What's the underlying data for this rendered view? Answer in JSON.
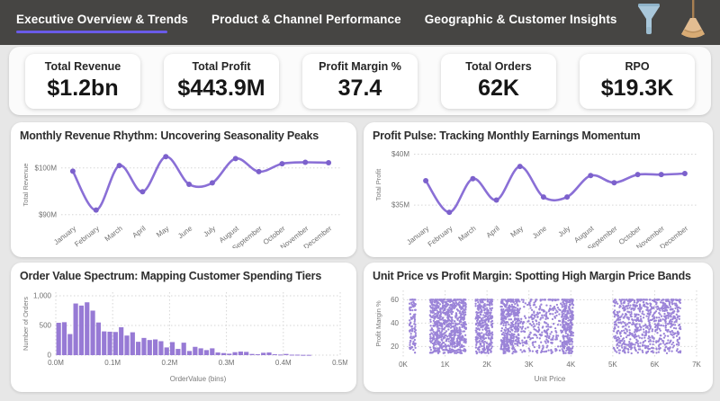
{
  "topbar": {
    "tabs": [
      {
        "label": "Executive Overview & Trends",
        "active": true
      },
      {
        "label": "Product & Channel Performance",
        "active": false
      },
      {
        "label": "Geographic & Customer Insights",
        "active": false
      }
    ]
  },
  "kpis": [
    {
      "label": "Total Revenue",
      "value": "$1.2bn"
    },
    {
      "label": "Total Profit",
      "value": "$443.9M"
    },
    {
      "label": "Profit Margin %",
      "value": "37.4"
    },
    {
      "label": "Total Orders",
      "value": "62K"
    },
    {
      "label": "RPO",
      "value": "$19.3K"
    }
  ],
  "colors": {
    "topbar_bg": "#464543",
    "tab_underline": "#6a5be8",
    "line_purple": "#8a6fd6",
    "marker_purple": "#7c61cc",
    "bar_purple": "#977ad5",
    "scatter_purple": "#8e73d3",
    "grid": "#d6d6d6",
    "tick_text": "#6f6f6f",
    "axis_title_text": "#7a7a7a"
  },
  "chart_data": [
    {
      "type": "line",
      "title": "Monthly Revenue Rhythm: Uncovering Seasonality Peaks",
      "ylabel": "Total Revenue",
      "unit": "$M",
      "categories": [
        "January",
        "February",
        "March",
        "April",
        "May",
        "June",
        "July",
        "August",
        "September",
        "October",
        "November",
        "December"
      ],
      "values": [
        99.3,
        91.0,
        100.5,
        94.9,
        102.4,
        96.5,
        96.8,
        102.0,
        99.2,
        100.9,
        101.2,
        101.1
      ],
      "ylim": [
        89.0,
        103.8
      ],
      "yticks": [
        {
          "v": 90,
          "label": "$90M"
        },
        {
          "v": 100,
          "label": "$100M"
        }
      ],
      "grid": "horizontal-dotted",
      "legend": "none"
    },
    {
      "type": "line",
      "title": "Profit Pulse: Tracking Monthly Earnings Momentum",
      "ylabel": "Total Profit",
      "unit": "$M",
      "categories": [
        "January",
        "February",
        "March",
        "April",
        "May",
        "June",
        "July",
        "August",
        "September",
        "October",
        "November",
        "December"
      ],
      "values": [
        37.4,
        34.3,
        37.6,
        35.5,
        38.8,
        35.8,
        35.8,
        37.9,
        37.2,
        38.0,
        38.0,
        38.1
      ],
      "ylim": [
        33.6,
        40.4
      ],
      "yticks": [
        {
          "v": 35,
          "label": "$35M"
        },
        {
          "v": 40,
          "label": "$40M"
        }
      ],
      "grid": "horizontal-dotted",
      "legend": "none"
    },
    {
      "type": "bar",
      "title": "Order Value Spectrum: Mapping Customer Spending Tiers",
      "xlabel": "OrderValue (bins)",
      "ylabel": "Number of Orders",
      "bin_width": 0.01,
      "bin_unit": "M",
      "values": [
        545,
        555,
        355,
        870,
        835,
        890,
        750,
        550,
        400,
        395,
        390,
        470,
        330,
        385,
        225,
        290,
        255,
        265,
        235,
        130,
        220,
        105,
        210,
        70,
        140,
        115,
        85,
        115,
        45,
        35,
        25,
        50,
        60,
        55,
        20,
        15,
        40,
        45,
        15,
        10,
        20,
        8,
        8,
        5,
        5
      ],
      "xlim": [
        0,
        0.5
      ],
      "ylim": [
        0,
        1060
      ],
      "xticks": [
        {
          "v": 0,
          "label": "0.0M"
        },
        {
          "v": 0.1,
          "label": "0.1M"
        },
        {
          "v": 0.2,
          "label": "0.2M"
        },
        {
          "v": 0.3,
          "label": "0.3M"
        },
        {
          "v": 0.4,
          "label": "0.4M"
        },
        {
          "v": 0.5,
          "label": "0.5M"
        }
      ],
      "yticks": [
        {
          "v": 0,
          "label": "0"
        },
        {
          "v": 500,
          "label": "500"
        },
        {
          "v": 1000,
          "label": "1,000"
        }
      ],
      "grid": "dotted-both",
      "legend": "none"
    },
    {
      "type": "scatter",
      "title": "Unit Price vs Profit Margin: Spotting High Margin Price Bands",
      "xlabel": "Unit Price",
      "ylabel": "Profit Margin %",
      "xlim": [
        0,
        7000
      ],
      "ylim": [
        11,
        68
      ],
      "xticks": [
        {
          "v": 0,
          "label": "0K"
        },
        {
          "v": 1000,
          "label": "1K"
        },
        {
          "v": 2000,
          "label": "2K"
        },
        {
          "v": 3000,
          "label": "3K"
        },
        {
          "v": 4000,
          "label": "4K"
        },
        {
          "v": 5000,
          "label": "5K"
        },
        {
          "v": 6000,
          "label": "6K"
        },
        {
          "v": 7000,
          "label": "7K"
        }
      ],
      "yticks": [
        {
          "v": 20,
          "label": "20"
        },
        {
          "v": 40,
          "label": "40"
        },
        {
          "v": 60,
          "label": "60"
        }
      ],
      "point_y_range": [
        14,
        60
      ],
      "bands": [
        {
          "x_min": 150,
          "x_max": 300,
          "count": 100
        },
        {
          "x_min": 640,
          "x_max": 1500,
          "count": 780
        },
        {
          "x_min": 1730,
          "x_max": 2130,
          "count": 360
        },
        {
          "x_min": 2330,
          "x_max": 2760,
          "count": 420
        },
        {
          "x_min": 2760,
          "x_max": 3790,
          "count": 300
        },
        {
          "x_min": 3790,
          "x_max": 4060,
          "count": 280
        },
        {
          "x_min": 5020,
          "x_max": 6620,
          "count": 780
        }
      ],
      "seed": 42,
      "grid": "dotted-both",
      "legend": "none"
    }
  ]
}
